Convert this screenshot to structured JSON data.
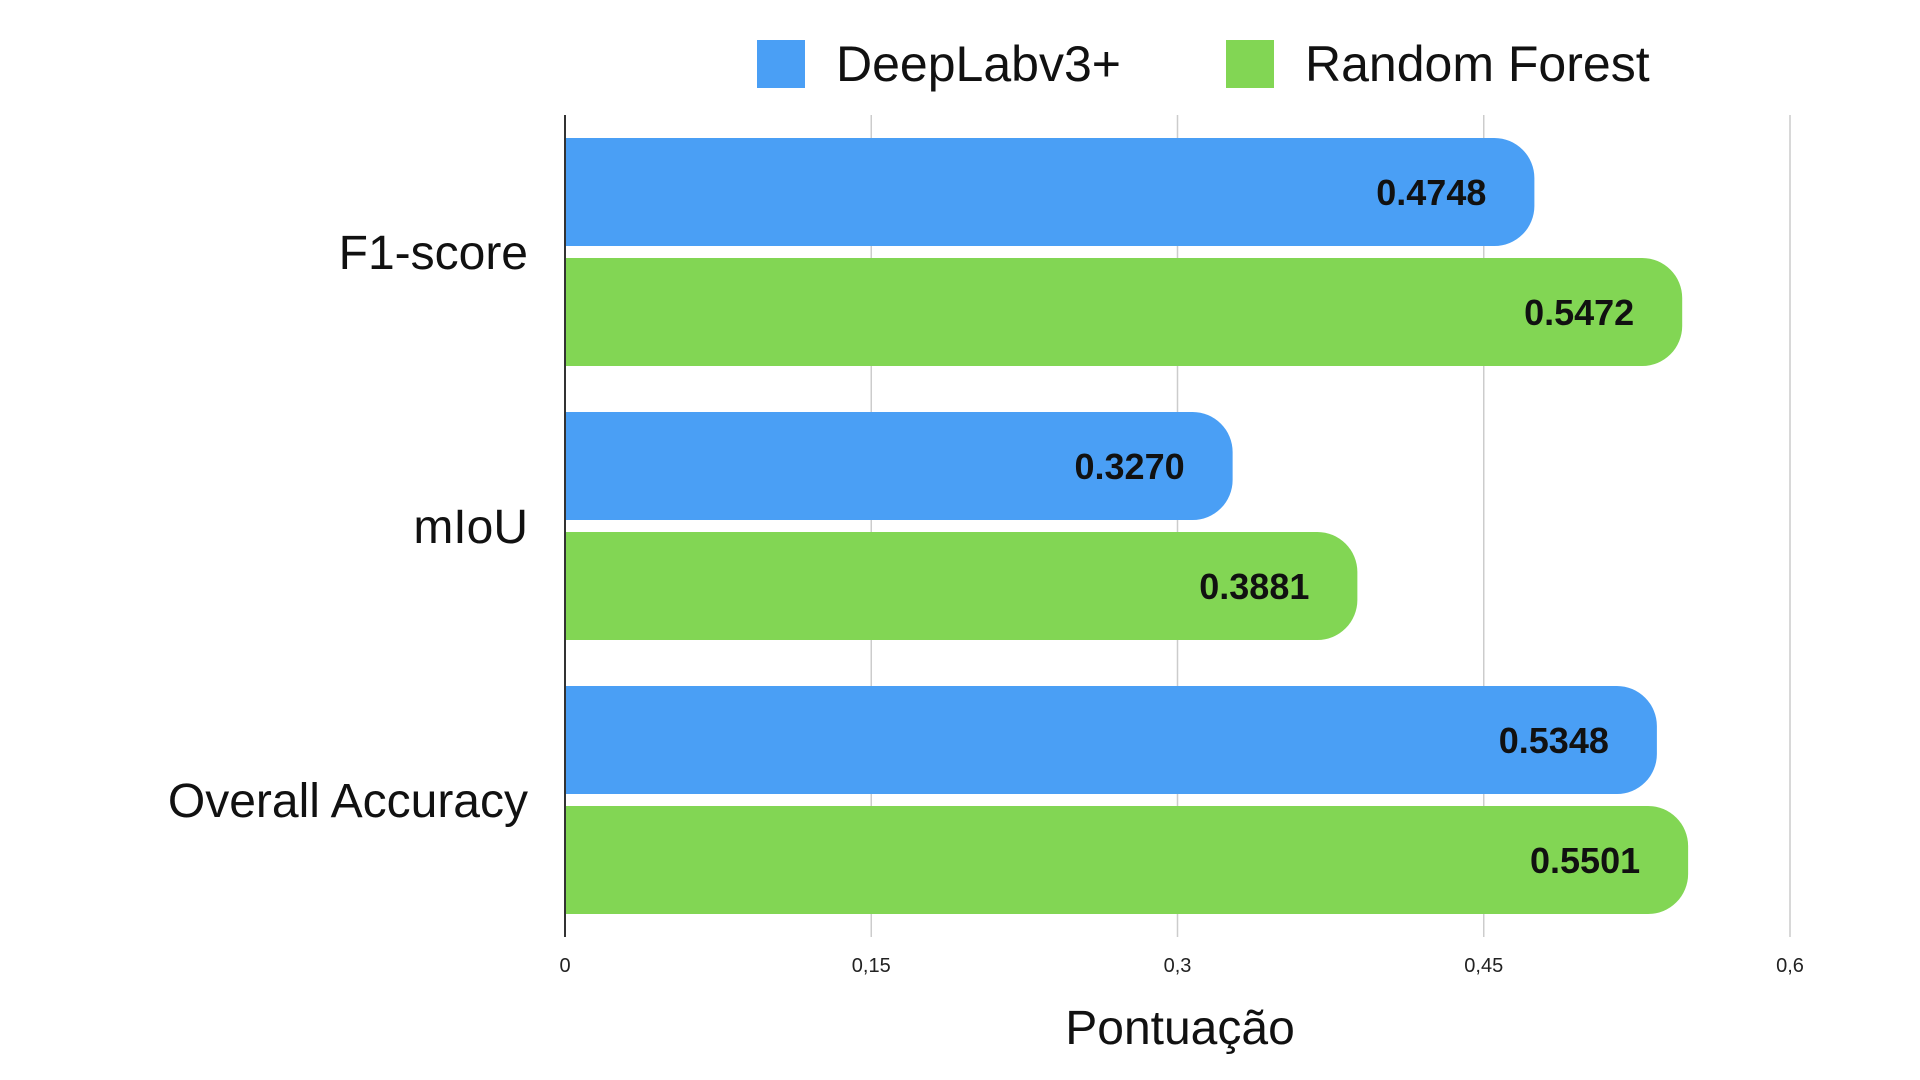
{
  "chart_data": {
    "type": "bar",
    "orientation": "horizontal",
    "categories": [
      "F1-score",
      "mIoU",
      "Overall Accuracy"
    ],
    "series": [
      {
        "name": "DeepLabv3+",
        "color": "#4a9ff5",
        "values": [
          0.4748,
          0.327,
          0.5348
        ],
        "value_labels": [
          "0.4748",
          "0.3270",
          "0.5348"
        ]
      },
      {
        "name": "Random Forest",
        "color": "#82d654",
        "values": [
          0.5472,
          0.3881,
          0.5501
        ],
        "value_labels": [
          "0.5472",
          "0.3881",
          "0.5501"
        ]
      }
    ],
    "xlabel": "Pontuação",
    "ylabel": "",
    "xlim": [
      0,
      0.6
    ],
    "ticks": [
      0,
      0.15,
      0.3,
      0.45,
      0.6
    ],
    "tick_labels": [
      "0",
      "0,15",
      "0,3",
      "0,45",
      "0,6"
    ],
    "grid": true,
    "legend": "top-right",
    "colors": {
      "grid": "#cccccc",
      "axis": "#333333"
    }
  }
}
